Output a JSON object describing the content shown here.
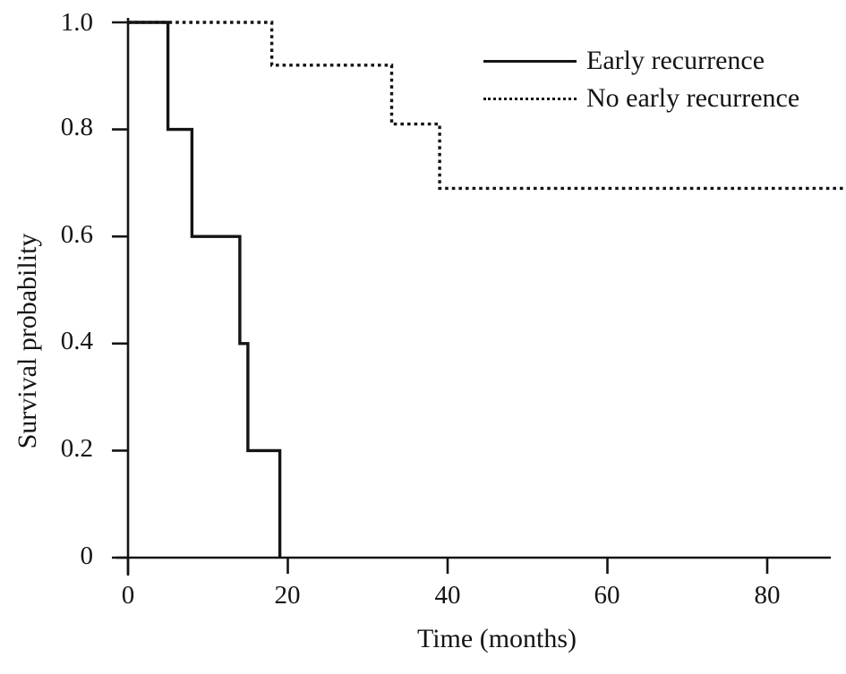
{
  "figure": {
    "background": "#ffffff",
    "ink_color": "#141414"
  },
  "chart_data": {
    "type": "line",
    "subtype": "kaplan-meier-step-curves",
    "title": "",
    "xlabel": "Time (months)",
    "ylabel": "Survival probability",
    "xlim": [
      0,
      80
    ],
    "ylim": [
      0,
      1.0
    ],
    "x_curve_extent": 90,
    "xticks": [
      0,
      20,
      40,
      60,
      80
    ],
    "xtick_labels": [
      "0",
      "20",
      "40",
      "60",
      "80"
    ],
    "yticks": [
      0,
      0.2,
      0.4,
      0.6,
      0.8,
      1.0
    ],
    "ytick_labels_desc": [
      "1.0",
      "0.8",
      "0.6",
      "0.4",
      "0.2",
      "0"
    ],
    "grid": false,
    "legend_position": "upper-right",
    "series": [
      {
        "name": "Early recurrence",
        "line_style": "solid",
        "color": "#141414",
        "points": [
          [
            0,
            1.0
          ],
          [
            5,
            1.0
          ],
          [
            5,
            0.8
          ],
          [
            8,
            0.8
          ],
          [
            8,
            0.6
          ],
          [
            14,
            0.6
          ],
          [
            14,
            0.4
          ],
          [
            15,
            0.4
          ],
          [
            15,
            0.2
          ],
          [
            19,
            0.2
          ],
          [
            19,
            0.0
          ]
        ]
      },
      {
        "name": "No early recurrence",
        "line_style": "dotted",
        "color": "#141414",
        "points": [
          [
            0,
            1.0
          ],
          [
            18,
            1.0
          ],
          [
            18,
            0.92
          ],
          [
            33,
            0.92
          ],
          [
            33,
            0.81
          ],
          [
            39,
            0.81
          ],
          [
            39,
            0.69
          ],
          [
            90,
            0.69
          ]
        ]
      }
    ]
  }
}
